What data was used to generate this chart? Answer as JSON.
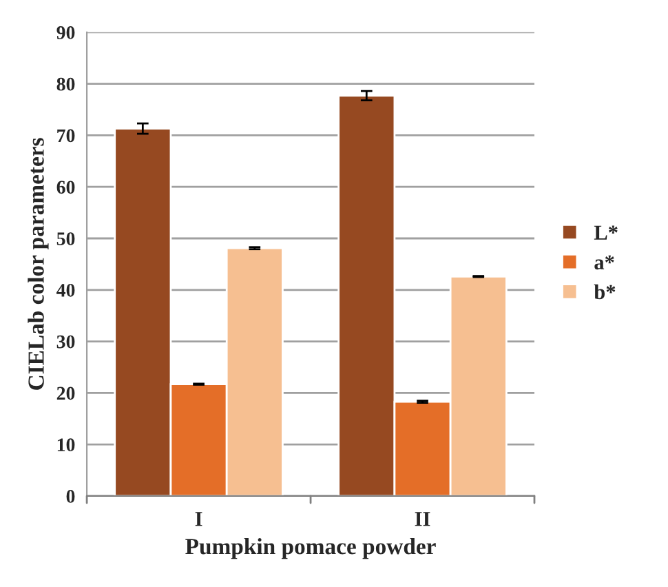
{
  "chart_data": {
    "type": "bar",
    "xlabel": "Pumpkin pomace powder",
    "ylabel": "CIELab color parameters",
    "categories": [
      "I",
      "II"
    ],
    "series": [
      {
        "name": "L*",
        "color": "#964921",
        "values": [
          71.3,
          77.7
        ],
        "errors": [
          1.0,
          0.9
        ]
      },
      {
        "name": "a*",
        "color": "#e46e28",
        "values": [
          21.7,
          18.3
        ],
        "errors": [
          0.1,
          0.2
        ]
      },
      {
        "name": "b*",
        "color": "#f6bf91",
        "values": [
          48.1,
          42.6
        ],
        "errors": [
          0.2,
          0.1
        ]
      }
    ],
    "ylim": [
      0,
      90
    ],
    "yticks": [
      0,
      10,
      20,
      30,
      40,
      50,
      60,
      70,
      80,
      90
    ],
    "grid": "y",
    "legend": "right"
  }
}
